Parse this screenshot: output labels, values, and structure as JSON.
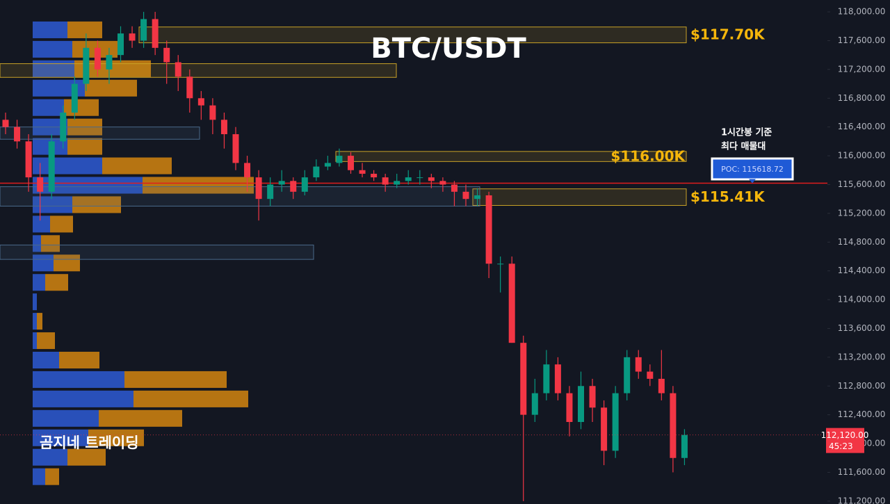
{
  "chart_data": {
    "type": "candlestick",
    "title": "BTC/USDT",
    "watermark": "곰지네 트레이딩",
    "ylim": [
      111160,
      118165
    ],
    "yticks": [
      {
        "value": 111200,
        "label": "111,200.00"
      },
      {
        "value": 111600,
        "label": "111,600.00"
      },
      {
        "value": 112000,
        "label": "112,000.00"
      },
      {
        "value": 112400,
        "label": "112,400.00"
      },
      {
        "value": 112800,
        "label": "112,800.00"
      },
      {
        "value": 113200,
        "label": "113,200.00"
      },
      {
        "value": 113600,
        "label": "113,600.00"
      },
      {
        "value": 114000,
        "label": "114,000.00"
      },
      {
        "value": 114400,
        "label": "114,400.00"
      },
      {
        "value": 114800,
        "label": "114,800.00"
      },
      {
        "value": 115200,
        "label": "115,200.00"
      },
      {
        "value": 115600,
        "label": "115,600.00"
      },
      {
        "value": 116000,
        "label": "116,000.00"
      },
      {
        "value": 116400,
        "label": "116,400.00"
      },
      {
        "value": 116800,
        "label": "116,800.00"
      },
      {
        "value": 117200,
        "label": "117,200.00"
      },
      {
        "value": 117600,
        "label": "117,600.00"
      },
      {
        "value": 118000,
        "label": "118,000.00"
      }
    ],
    "up_color": "#089981",
    "down_color": "#f23645",
    "ohlc": [
      [
        116500,
        116600,
        116300,
        116400
      ],
      [
        116400,
        116500,
        116100,
        116200
      ],
      [
        116200,
        116300,
        115500,
        115700
      ],
      [
        115700,
        115900,
        115100,
        115500
      ],
      [
        115500,
        116300,
        115400,
        116200
      ],
      [
        116200,
        116700,
        116100,
        116600
      ],
      [
        116600,
        117100,
        116500,
        117000
      ],
      [
        117000,
        117700,
        116900,
        117500
      ],
      [
        117500,
        117600,
        117100,
        117200
      ],
      [
        117200,
        117500,
        117000,
        117400
      ],
      [
        117400,
        117800,
        117300,
        117700
      ],
      [
        117700,
        117800,
        117500,
        117600
      ],
      [
        117600,
        118000,
        117500,
        117900
      ],
      [
        117900,
        118000,
        117400,
        117500
      ],
      [
        117500,
        117600,
        117000,
        117300
      ],
      [
        117300,
        117400,
        116900,
        117100
      ],
      [
        117100,
        117200,
        116600,
        116800
      ],
      [
        116800,
        116900,
        116500,
        116700
      ],
      [
        116700,
        116800,
        116300,
        116500
      ],
      [
        116500,
        116600,
        116100,
        116300
      ],
      [
        116300,
        116400,
        115800,
        115900
      ],
      [
        115900,
        116000,
        115500,
        115700
      ],
      [
        115700,
        115800,
        115100,
        115400
      ],
      [
        115400,
        115700,
        115300,
        115600
      ],
      [
        115600,
        115800,
        115500,
        115650
      ],
      [
        115650,
        115700,
        115400,
        115500
      ],
      [
        115500,
        115800,
        115450,
        115700
      ],
      [
        115700,
        115950,
        115650,
        115850
      ],
      [
        115850,
        116000,
        115800,
        115900
      ],
      [
        115900,
        116100,
        115850,
        116000
      ],
      [
        116000,
        116050,
        115750,
        115800
      ],
      [
        115800,
        115900,
        115700,
        115750
      ],
      [
        115750,
        115800,
        115650,
        115700
      ],
      [
        115700,
        115750,
        115500,
        115600
      ],
      [
        115600,
        115750,
        115550,
        115650
      ],
      [
        115650,
        115800,
        115600,
        115700
      ],
      [
        115700,
        115800,
        115600,
        115700
      ],
      [
        115700,
        115750,
        115550,
        115650
      ],
      [
        115650,
        115700,
        115500,
        115600
      ],
      [
        115600,
        115650,
        115300,
        115500
      ],
      [
        115500,
        115600,
        115300,
        115400
      ],
      [
        115400,
        115550,
        115300,
        115450
      ],
      [
        115450,
        115500,
        114300,
        114500
      ],
      [
        114500,
        114600,
        114100,
        114500
      ],
      [
        114500,
        114600,
        113400,
        113400
      ],
      [
        113400,
        113500,
        111200,
        112400
      ],
      [
        112400,
        112900,
        112300,
        112700
      ],
      [
        112700,
        113300,
        112600,
        113100
      ],
      [
        113100,
        113200,
        112600,
        112700
      ],
      [
        112700,
        112800,
        112100,
        112300
      ],
      [
        112300,
        113000,
        112200,
        112800
      ],
      [
        112800,
        112900,
        112300,
        112500
      ],
      [
        112500,
        112600,
        111700,
        111900
      ],
      [
        111900,
        112800,
        111800,
        112700
      ],
      [
        112700,
        113300,
        112600,
        113200
      ],
      [
        113200,
        113300,
        112900,
        113000
      ],
      [
        113000,
        113100,
        112800,
        112900
      ],
      [
        112900,
        113300,
        112600,
        112700
      ],
      [
        112700,
        112800,
        111600,
        111800
      ],
      [
        111800,
        112200,
        111700,
        112120
      ]
    ],
    "volume_profile": {
      "buy_color": "#2e5bd3",
      "sell_color": "#d4850f",
      "levels": [
        117750,
        117480,
        117210,
        116940,
        116670,
        116400,
        116130,
        115860,
        115590,
        115320,
        115050,
        114780,
        114510,
        114240,
        113970,
        113700,
        113430,
        113160,
        112890,
        112620,
        112350,
        112080,
        111810,
        111540
      ],
      "buy": [
        50,
        57,
        60,
        75,
        45,
        50,
        50,
        100,
        158,
        57,
        25,
        12,
        30,
        18,
        6,
        6,
        6,
        38,
        132,
        145,
        95,
        80,
        50,
        18
      ],
      "sell": [
        50,
        65,
        110,
        75,
        50,
        50,
        50,
        100,
        160,
        70,
        33,
        27,
        38,
        33,
        0,
        8,
        26,
        58,
        147,
        165,
        120,
        80,
        55,
        20
      ]
    },
    "zones": [
      {
        "top": 117790,
        "bottom": 117570,
        "label": "$117.70K",
        "color": "#c9a227"
      },
      {
        "top": 117280,
        "bottom": 117090,
        "color": "#c9a227"
      },
      {
        "top": 116060,
        "bottom": 115920,
        "label": "$116.00K",
        "color": "#c9a227"
      },
      {
        "top": 115540,
        "bottom": 115310,
        "label": "$115.41K",
        "color": "#c9a227"
      },
      {
        "top": 116400,
        "bottom": 116230,
        "color": "#4a6a8a"
      },
      {
        "top": 114760,
        "bottom": 114560,
        "color": "#4a6a8a"
      },
      {
        "top": 115570,
        "bottom": 115300,
        "color": "#4a6a8a"
      }
    ],
    "poc": {
      "value": 115618.72,
      "label": "POC: 115618.72",
      "note": [
        "1시간봉 기준",
        "최다 매물대"
      ],
      "color": "#e01e1e"
    },
    "last_price": {
      "value": 112120,
      "label": "112,120.00",
      "countdown": "45:23"
    }
  }
}
